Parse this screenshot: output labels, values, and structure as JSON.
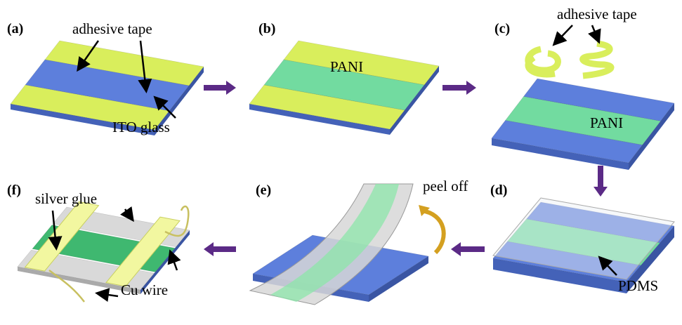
{
  "panels": [
    {
      "label": "(a)",
      "annotations": [
        "adhesive tape",
        "ITO glass"
      ]
    },
    {
      "label": "(b)",
      "annotations": [
        "PANI"
      ]
    },
    {
      "label": "(c)",
      "annotations": [
        "adhesive tape",
        "PANI"
      ]
    },
    {
      "label": "(d)",
      "annotations": [
        "PDMS"
      ]
    },
    {
      "label": "(e)",
      "annotations": [
        "peel off"
      ]
    },
    {
      "label": "(f)",
      "annotations": [
        "silver glue",
        "Cu wire"
      ]
    }
  ]
}
